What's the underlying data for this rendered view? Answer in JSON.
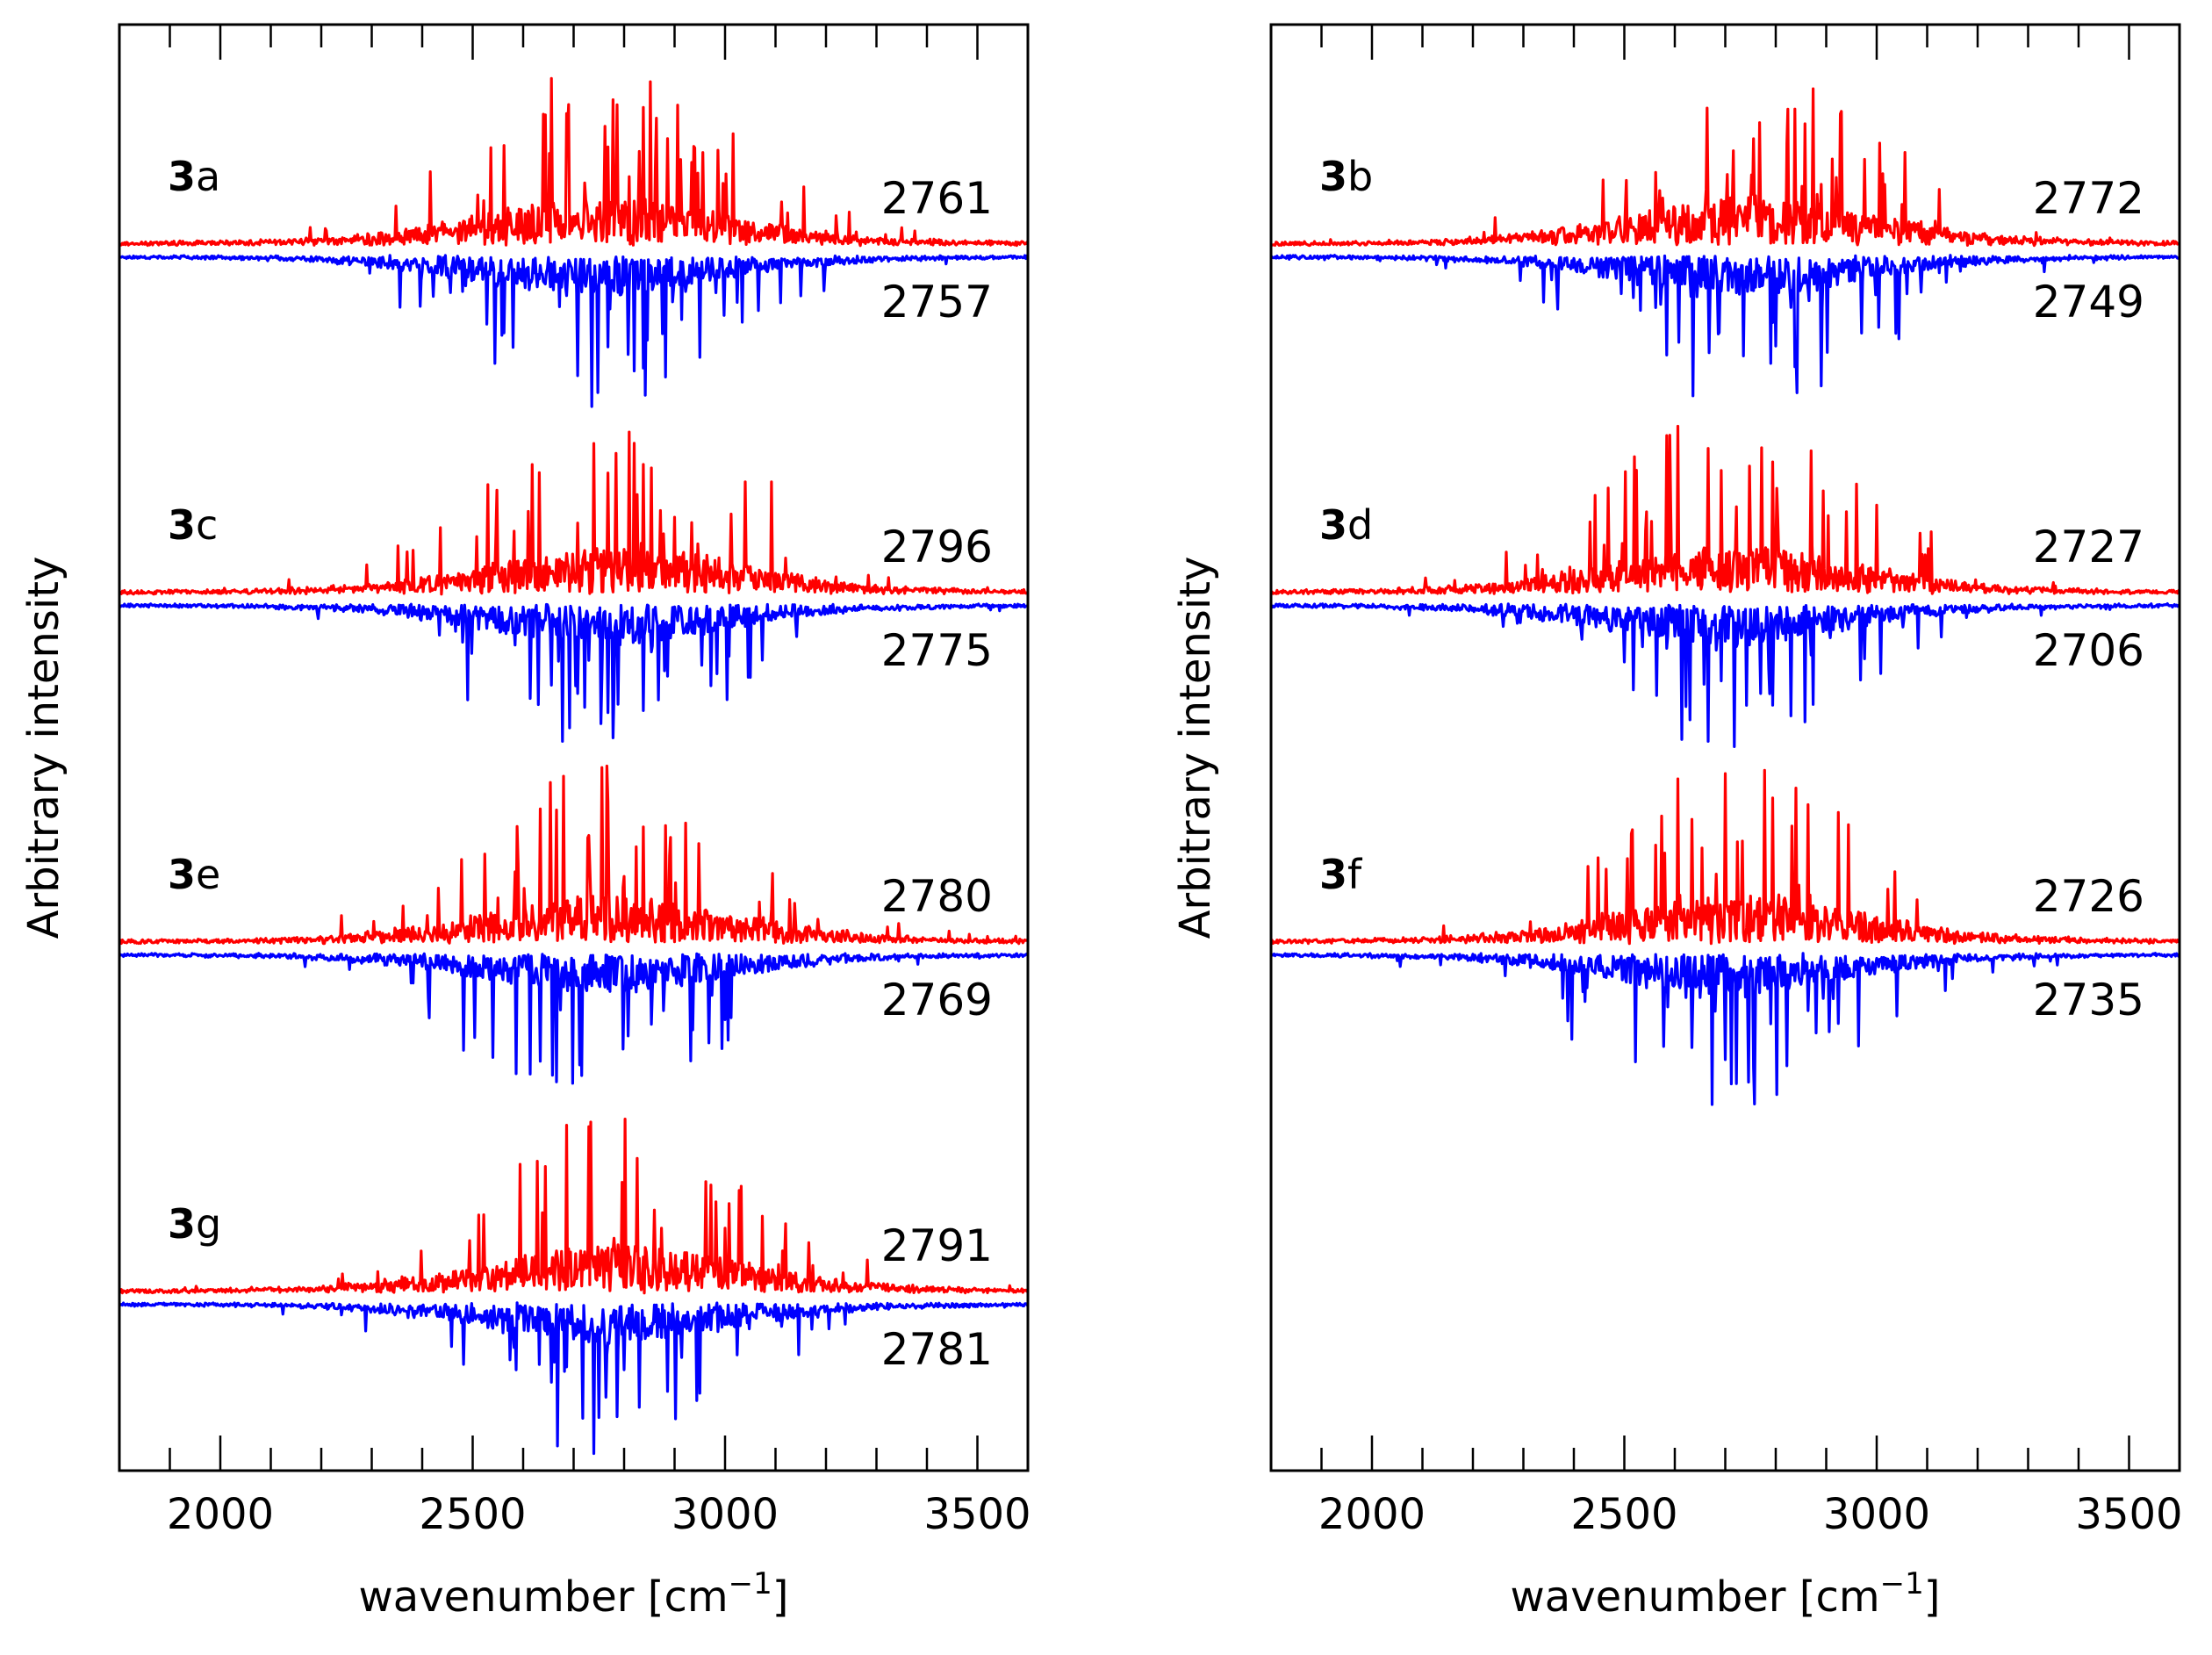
{
  "chart_data": {
    "type": "line",
    "xlabel": "wavenumber [cm",
    "xlabel_superscript": "−1",
    "xlabel_suffix": "]",
    "ylabel": "Arbitrary intensity",
    "xlim": [
      1800,
      3600
    ],
    "xticks": [
      "2000",
      "2500",
      "3000",
      "3500"
    ],
    "series_colors": {
      "upper": "#ff0000",
      "lower": "#0000ff"
    },
    "panels": [
      {
        "id": "left",
        "traces": [
          {
            "compound": "3",
            "label": "a",
            "upper_value": "2761",
            "lower_value": "2757",
            "peak_center": 2759
          },
          {
            "compound": "3",
            "label": "c",
            "upper_value": "2796",
            "lower_value": "2775",
            "peak_center": 2785
          },
          {
            "compound": "3",
            "label": "e",
            "upper_value": "2780",
            "lower_value": "2769",
            "peak_center": 2775
          },
          {
            "compound": "3",
            "label": "g",
            "upper_value": "2791",
            "lower_value": "2781",
            "peak_center": 2786
          }
        ]
      },
      {
        "id": "right",
        "traces": [
          {
            "compound": "3",
            "label": "b",
            "upper_value": "2772",
            "lower_value": "2749",
            "peak_center": 2760
          },
          {
            "compound": "3",
            "label": "d",
            "upper_value": "2727",
            "lower_value": "2706",
            "peak_center": 2716
          },
          {
            "compound": "3",
            "label": "f",
            "upper_value": "2726",
            "lower_value": "2735",
            "peak_center": 2730
          }
        ]
      }
    ]
  }
}
